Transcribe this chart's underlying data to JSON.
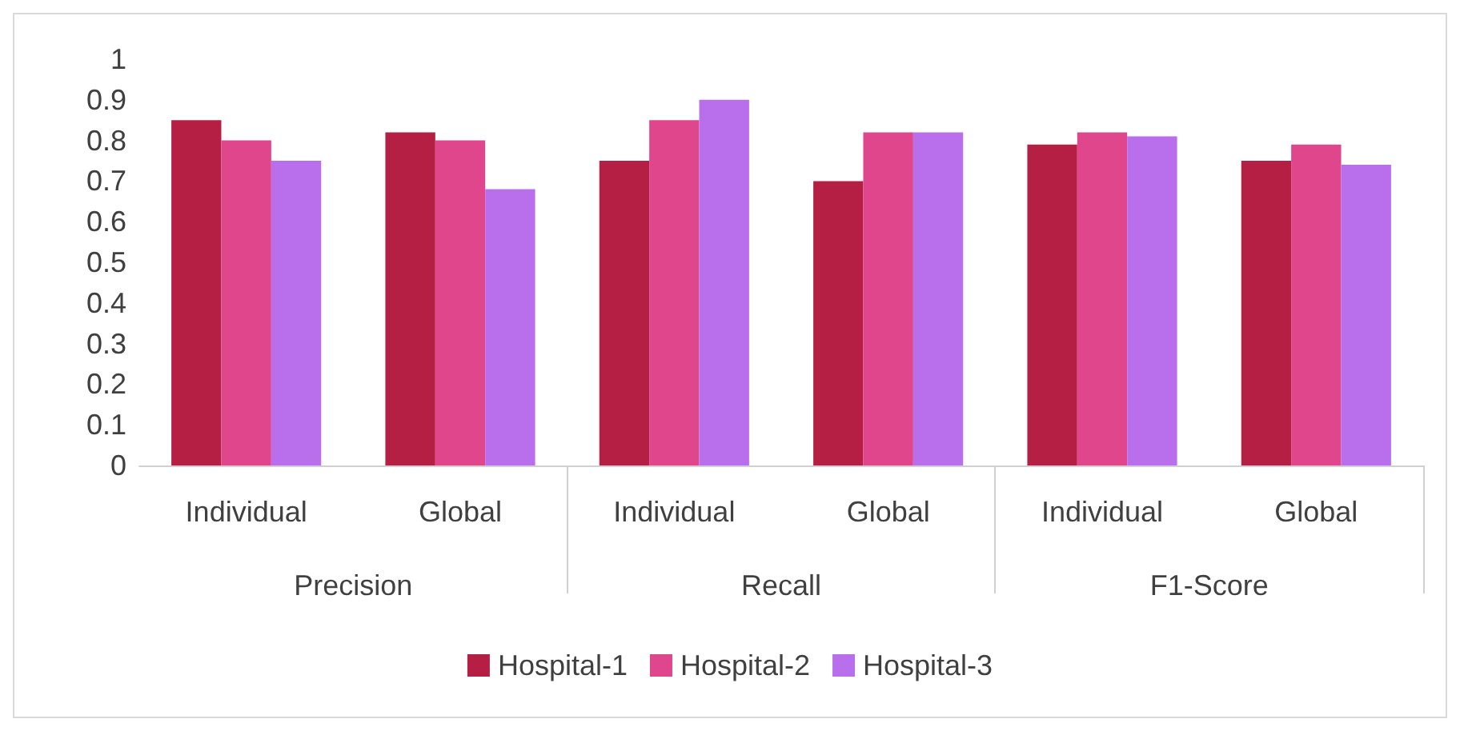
{
  "chart_data": {
    "type": "bar",
    "categories": [
      "Individual",
      "Global",
      "Individual",
      "Global",
      "Individual",
      "Global"
    ],
    "annotations": [
      "Precision",
      "Recall",
      "F1-Score"
    ],
    "series": [
      {
        "name": "Hospital-1",
        "color": "#b51f43",
        "values": [
          0.85,
          0.82,
          0.75,
          0.7,
          0.79,
          0.75
        ]
      },
      {
        "name": "Hospital-2",
        "color": "#e0468c",
        "values": [
          0.8,
          0.8,
          0.85,
          0.82,
          0.82,
          0.79
        ]
      },
      {
        "name": "Hospital-3",
        "color": "#b96fec",
        "values": [
          0.75,
          0.68,
          0.9,
          0.82,
          0.81,
          0.74
        ]
      }
    ],
    "ylim": [
      0,
      1
    ],
    "yticks": [
      0,
      0.1,
      0.2,
      0.3,
      0.4,
      0.5,
      0.6,
      0.7,
      0.8,
      0.9,
      1
    ],
    "grid": false,
    "legend": "bottom"
  }
}
